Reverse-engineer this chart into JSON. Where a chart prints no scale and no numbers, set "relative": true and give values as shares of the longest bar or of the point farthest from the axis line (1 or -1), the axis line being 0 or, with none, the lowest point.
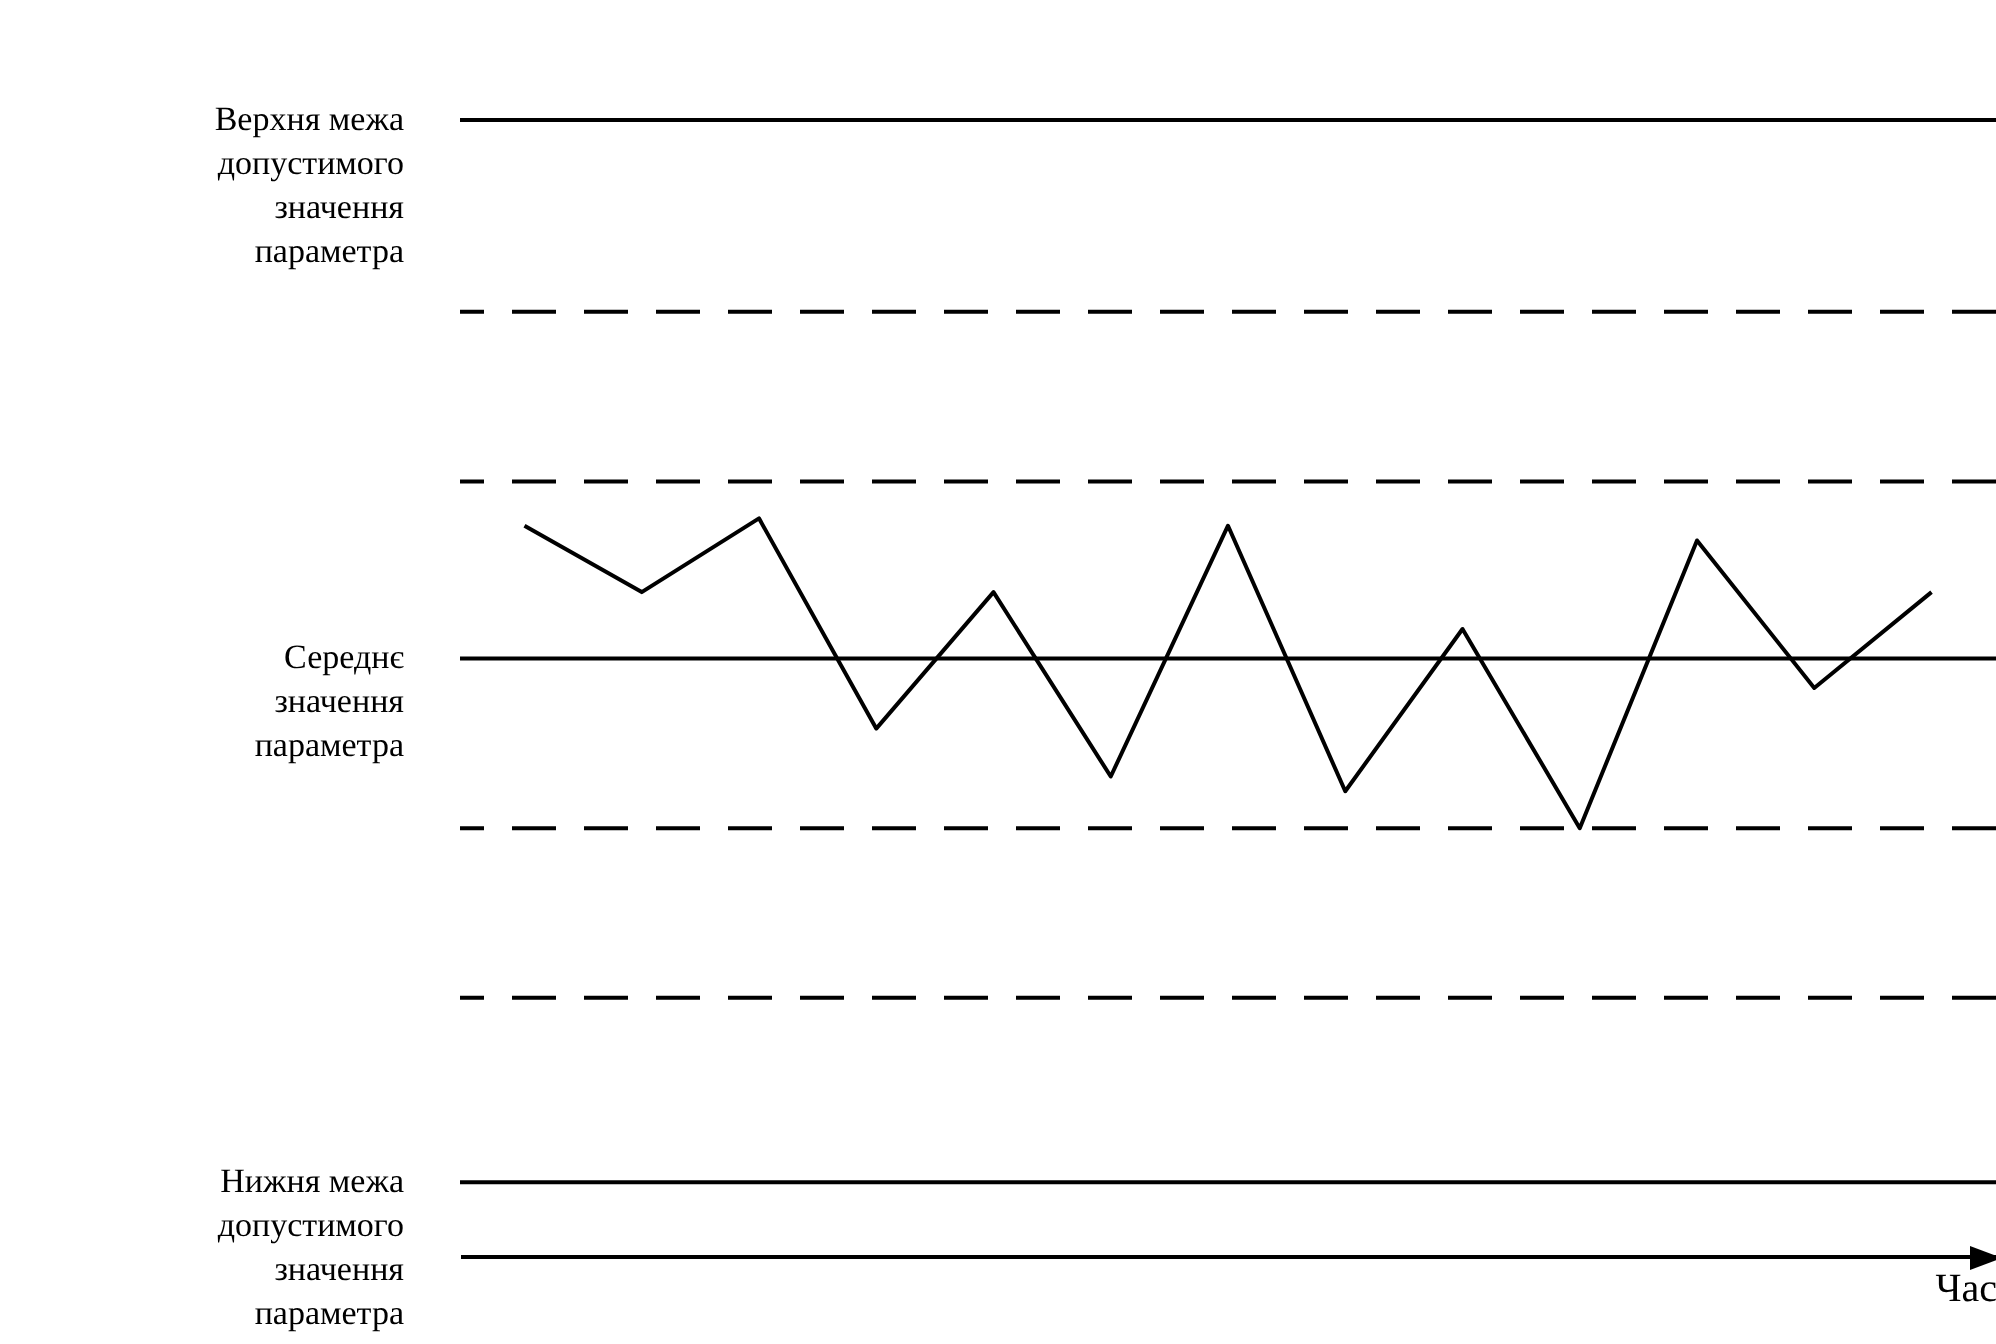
{
  "chart_data": {
    "type": "line",
    "relative": true,
    "xlabel": "Час",
    "categories": [
      null,
      null,
      null,
      null,
      null,
      null,
      null,
      null,
      null,
      null,
      null,
      null,
      null
    ],
    "series": [
      {
        "color": "#000000",
        "values": [
          0.99,
          0.9,
          1,
          0.715,
          0.9,
          0.65,
          0.99,
          0.63,
          0.85,
          0.58,
          0.97,
          0.77,
          0.9
        ]
      }
    ],
    "ref_lines": [
      {
        "axis": "y",
        "value": 1.54,
        "label": "Верхня межа\nдопустимого\nзначення\nпараметра",
        "color": "#000000",
        "line_style": "solid"
      },
      {
        "axis": "y",
        "value": 1.28,
        "label": null,
        "color": "#000000",
        "line_style": "dashed"
      },
      {
        "axis": "y",
        "value": 1.05,
        "label": null,
        "color": "#000000",
        "line_style": "dashed"
      },
      {
        "axis": "y",
        "value": 0.81,
        "label": "Середнє\nзначення\nпараметра",
        "color": "#000000",
        "line_style": "solid"
      },
      {
        "axis": "y",
        "value": 0.58,
        "label": null,
        "color": "#000000",
        "line_style": "dashed"
      },
      {
        "axis": "y",
        "value": 0.35,
        "label": null,
        "color": "#000000",
        "line_style": "dashed"
      },
      {
        "axis": "y",
        "value": 0.1,
        "label": "Нижня межа\nдопустимого\nзначення\nпараметра",
        "color": "#000000",
        "line_style": "solid"
      }
    ],
    "tick_labels": false,
    "marker": "none",
    "line_style": "solid"
  }
}
